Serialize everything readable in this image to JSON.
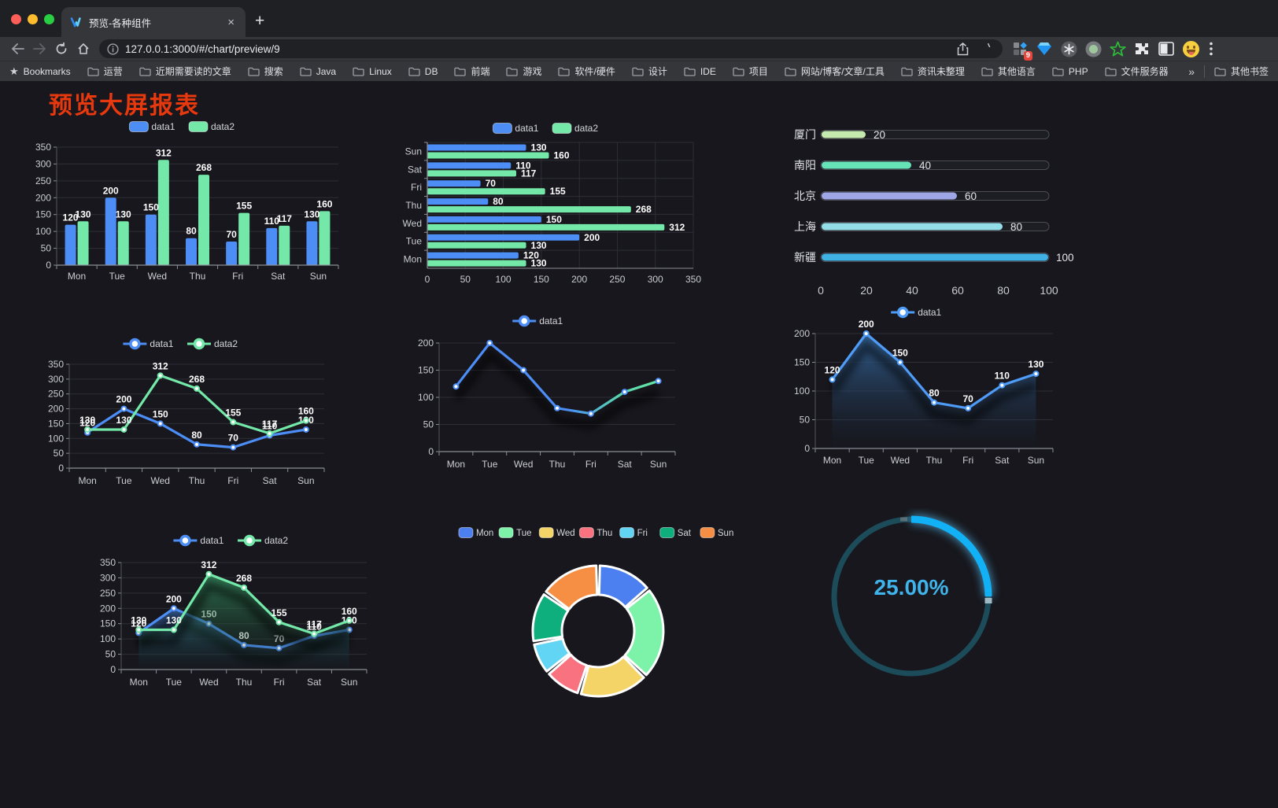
{
  "browser": {
    "tab_title": "预览-各种组件",
    "url": "127.0.0.1:3000/#/chart/preview/9",
    "new_tab_label": "+",
    "close_tab_label": "×",
    "extension_badge": "9",
    "bookmarks_root_label": "Bookmarks",
    "bookmarks": [
      "运营",
      "近期需要读的文章",
      "搜索",
      "Java",
      "Linux",
      "DB",
      "前端",
      "游戏",
      "软件/硬件",
      "设计",
      "IDE",
      "项目",
      "网站/博客/文章/工具",
      "资讯未整理",
      "其他语言",
      "PHP",
      "文件服务器"
    ],
    "bookmarks_overflow": "»",
    "other_bookmarks_label": "其他书签",
    "icons": [
      "back-icon",
      "forward-icon",
      "reload-icon",
      "home-icon",
      "site-info-icon",
      "share-icon",
      "bookmark-star-icon",
      "extension-grid-icon",
      "gem-icon",
      "asterisk-circle-icon",
      "record-circle-icon",
      "green-star-icon",
      "puzzle-icon",
      "side-panel-icon",
      "profile-emoji-icon",
      "menu-dots-icon"
    ]
  },
  "page": {
    "title": "预览大屏报表",
    "title_color": "#e8380d",
    "background": "#17171d"
  },
  "chart_data": [
    {
      "id": "bar-vertical",
      "type": "bar",
      "categories": [
        "Mon",
        "Tue",
        "Wed",
        "Thu",
        "Fri",
        "Sat",
        "Sun"
      ],
      "series": [
        {
          "name": "data1",
          "color": "#4c8df6",
          "values": [
            120,
            200,
            150,
            80,
            70,
            110,
            130
          ]
        },
        {
          "name": "data2",
          "color": "#73e8a8",
          "values": [
            130,
            130,
            312,
            268,
            155,
            117,
            160
          ]
        }
      ],
      "ylim": [
        0,
        350
      ],
      "yticks": [
        0,
        50,
        100,
        150,
        200,
        250,
        300,
        350
      ],
      "grid": true,
      "legend_position": "top",
      "labels": true
    },
    {
      "id": "bar-horizontal",
      "type": "bar",
      "orientation": "horizontal",
      "categories": [
        "Mon",
        "Tue",
        "Wed",
        "Thu",
        "Fri",
        "Sat",
        "Sun"
      ],
      "series": [
        {
          "name": "data1",
          "color": "#4c8df6",
          "values": [
            120,
            200,
            150,
            80,
            70,
            110,
            130
          ]
        },
        {
          "name": "data2",
          "color": "#73e8a8",
          "values": [
            130,
            130,
            312,
            268,
            155,
            117,
            160
          ]
        }
      ],
      "xlim": [
        0,
        350
      ],
      "xticks": [
        0,
        50,
        100,
        150,
        200,
        250,
        300,
        350
      ],
      "grid": true,
      "legend_position": "top",
      "labels": true
    },
    {
      "id": "city-progress",
      "type": "bar",
      "style": "progress-pills",
      "items": [
        {
          "label": "厦门",
          "value": 20,
          "color": "#c4ebad"
        },
        {
          "label": "南阳",
          "value": 40,
          "color": "#66e4b8"
        },
        {
          "label": "北京",
          "value": 60,
          "color": "#9fa6e5"
        },
        {
          "label": "上海",
          "value": 80,
          "color": "#93dde6"
        },
        {
          "label": "新疆",
          "value": 100,
          "color": "#3fb1e3"
        }
      ],
      "xlim": [
        0,
        100
      ],
      "xticks": [
        0,
        20,
        40,
        60,
        80,
        100
      ]
    },
    {
      "id": "line-two-series",
      "type": "line",
      "categories": [
        "Mon",
        "Tue",
        "Wed",
        "Thu",
        "Fri",
        "Sat",
        "Sun"
      ],
      "series": [
        {
          "name": "data1",
          "color": "#4c8df6",
          "values": [
            120,
            200,
            150,
            80,
            70,
            110,
            130
          ]
        },
        {
          "name": "data2",
          "color": "#73e8a8",
          "values": [
            130,
            130,
            312,
            268,
            155,
            117,
            160
          ]
        }
      ],
      "ylim": [
        0,
        350
      ],
      "yticks": [
        0,
        50,
        100,
        150,
        200,
        250,
        300,
        350
      ],
      "grid": true,
      "legend_position": "top",
      "labels": true
    },
    {
      "id": "line-gradient",
      "type": "line",
      "categories": [
        "Mon",
        "Tue",
        "Wed",
        "Thu",
        "Fri",
        "Sat",
        "Sun"
      ],
      "series": [
        {
          "name": "data1",
          "color": "#4c8df6",
          "gradient_to": "#67e6a3",
          "values": [
            120,
            200,
            150,
            80,
            70,
            110,
            130
          ]
        }
      ],
      "ylim": [
        0,
        200
      ],
      "yticks": [
        0,
        50,
        100,
        150,
        200
      ],
      "grid": true,
      "legend_position": "top",
      "labels": false,
      "shadow": true
    },
    {
      "id": "area-single",
      "type": "area",
      "categories": [
        "Mon",
        "Tue",
        "Wed",
        "Thu",
        "Fri",
        "Sat",
        "Sun"
      ],
      "series": [
        {
          "name": "data1",
          "color": "#4f9bf8",
          "fill_top": "rgba(56,110,168,0.88)",
          "fill_bottom": "rgba(25,40,60,0.06)",
          "values": [
            120,
            200,
            150,
            80,
            70,
            110,
            130
          ]
        }
      ],
      "ylim": [
        0,
        200
      ],
      "yticks": [
        0,
        50,
        100,
        150,
        200
      ],
      "grid": true,
      "legend_position": "top",
      "labels": true,
      "shadow": true
    },
    {
      "id": "area-two-series",
      "type": "area",
      "categories": [
        "Mon",
        "Tue",
        "Wed",
        "Thu",
        "Fri",
        "Sat",
        "Sun"
      ],
      "series": [
        {
          "name": "data1",
          "color": "#4c8df6",
          "fill_top": "rgba(58,110,180,0.75)",
          "fill_bottom": "rgba(20,35,60,0.05)",
          "values": [
            120,
            200,
            150,
            80,
            70,
            110,
            130
          ]
        },
        {
          "name": "data2",
          "color": "#73e8a8",
          "fill_top": "rgba(55,145,98,0.8)",
          "fill_bottom": "rgba(18,45,32,0.05)",
          "values": [
            130,
            130,
            312,
            268,
            155,
            117,
            160
          ]
        }
      ],
      "ylim": [
        0,
        350
      ],
      "yticks": [
        0,
        50,
        100,
        150,
        200,
        250,
        300,
        350
      ],
      "grid": true,
      "legend_position": "top",
      "labels": true,
      "shadow": true
    },
    {
      "id": "donut",
      "type": "pie",
      "inner_radius_ratio": 0.55,
      "items": [
        {
          "label": "Mon",
          "value": 120,
          "color": "#4c7ff0"
        },
        {
          "label": "Tue",
          "value": 200,
          "color": "#7df3a9"
        },
        {
          "label": "Wed",
          "value": 150,
          "color": "#f4d467"
        },
        {
          "label": "Thu",
          "value": 80,
          "color": "#f8727f"
        },
        {
          "label": "Fri",
          "value": 70,
          "color": "#62d4f4"
        },
        {
          "label": "Sat",
          "value": 110,
          "color": "#0fae7d"
        },
        {
          "label": "Sun",
          "value": 130,
          "color": "#f68e43"
        }
      ],
      "border_color": "#ffffff",
      "legend_position": "top"
    },
    {
      "id": "gauge",
      "type": "gauge",
      "value": 25,
      "label": "25.00%",
      "arc_color": "#12b1f5",
      "track_color": "#1c4b59",
      "text_color": "#3fb3ea",
      "start_angle_deg": -90,
      "sweep_deg": 90
    }
  ]
}
